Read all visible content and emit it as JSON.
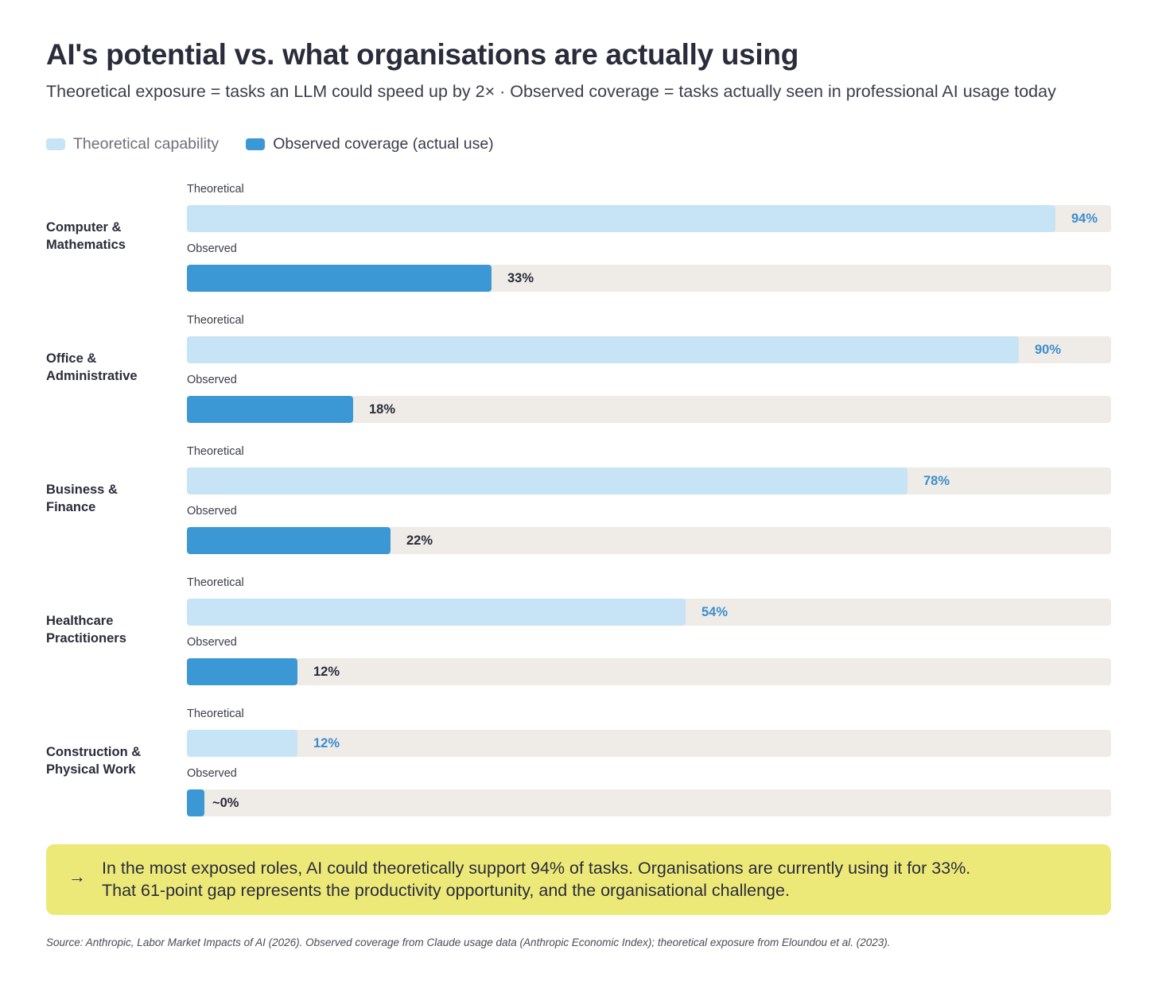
{
  "header": {
    "title": "AI's potential vs. what organisations are actually using",
    "subtitle": "Theoretical exposure = tasks an LLM could speed up by 2× · Observed coverage = tasks actually seen in professional AI usage today"
  },
  "legend": {
    "theoretical": "Theoretical capability",
    "observed": "Observed coverage (actual use)"
  },
  "colors": {
    "theoretical_fill": "#c7e4f6",
    "observed_fill": "#3c98d4",
    "track": "#efebe7",
    "theoretical_value_text": "#3a8fce",
    "callout_bg": "#ede979"
  },
  "chart_data": {
    "type": "bar",
    "orientation": "horizontal",
    "xlim": [
      0,
      100
    ],
    "unit": "%",
    "row_labels": {
      "theoretical": "Theoretical",
      "observed": "Observed"
    },
    "categories": [
      {
        "name": "Computer &\nMathematics",
        "theoretical": 94,
        "observed": 33,
        "theoretical_label": "94%",
        "observed_label": "33%"
      },
      {
        "name": "Office &\nAdministrative",
        "theoretical": 90,
        "observed": 18,
        "theoretical_label": "90%",
        "observed_label": "18%"
      },
      {
        "name": "Business &\nFinance",
        "theoretical": 78,
        "observed": 22,
        "theoretical_label": "78%",
        "observed_label": "22%"
      },
      {
        "name": "Healthcare\nPractitioners",
        "theoretical": 54,
        "observed": 12,
        "theoretical_label": "54%",
        "observed_label": "12%"
      },
      {
        "name": "Construction &\nPhysical Work",
        "theoretical": 12,
        "observed": 0,
        "theoretical_label": "12%",
        "observed_label": "~0%"
      }
    ]
  },
  "callout": {
    "arrow": "→",
    "line1": "In the most exposed roles, AI could theoretically support 94% of tasks. Organisations are currently using it for 33%.",
    "line2": "That 61-point gap represents the productivity opportunity, and the organisational challenge."
  },
  "source": "Source: Anthropic, Labor Market Impacts of AI (2026). Observed coverage from Claude usage data (Anthropic Economic Index); theoretical exposure from Eloundou et al. (2023)."
}
